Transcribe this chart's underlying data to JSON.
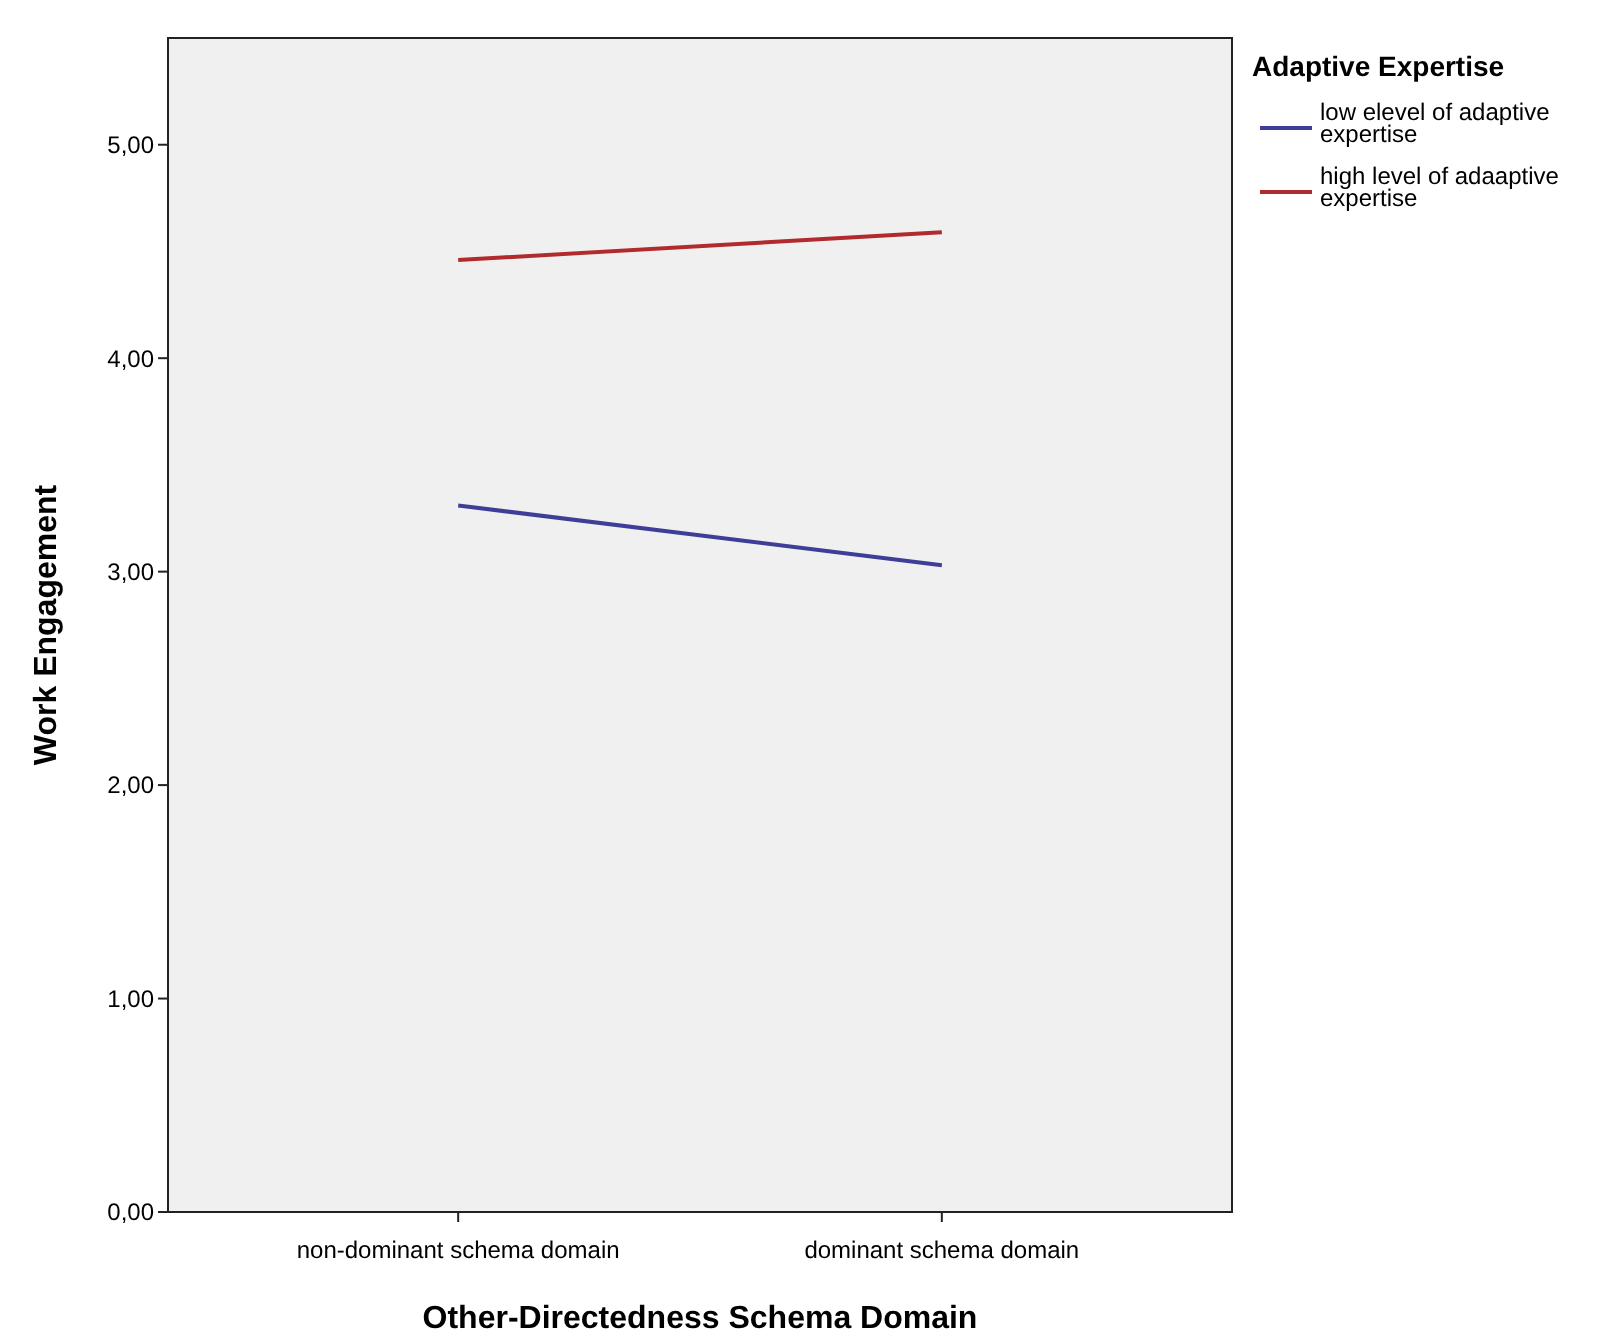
{
  "chart_data": {
    "type": "line",
    "xlabel": "Other-Directedness Schema Domain",
    "ylabel": "Work Engagement",
    "legend_title": "Adaptive Expertise",
    "categories": [
      "non-dominant schema domain",
      "dominant schema domain"
    ],
    "series": [
      {
        "name": "low elevel of adaptive expertise",
        "color": "#3e3e98",
        "values": [
          3.31,
          3.03
        ]
      },
      {
        "name": "high level of adaaptive expertise",
        "color": "#b02a2e",
        "values": [
          4.46,
          4.59
        ]
      }
    ],
    "ylim": [
      0,
      5.5
    ],
    "yticks": [
      {
        "value": 0,
        "label": "0,00"
      },
      {
        "value": 1,
        "label": "1,00"
      },
      {
        "value": 2,
        "label": "2,00"
      },
      {
        "value": 3,
        "label": "3,00"
      },
      {
        "value": 4,
        "label": "4,00"
      },
      {
        "value": 5,
        "label": "5,00"
      }
    ],
    "grid": false,
    "legend": "top right",
    "marker": "none",
    "line_style": "solid"
  }
}
